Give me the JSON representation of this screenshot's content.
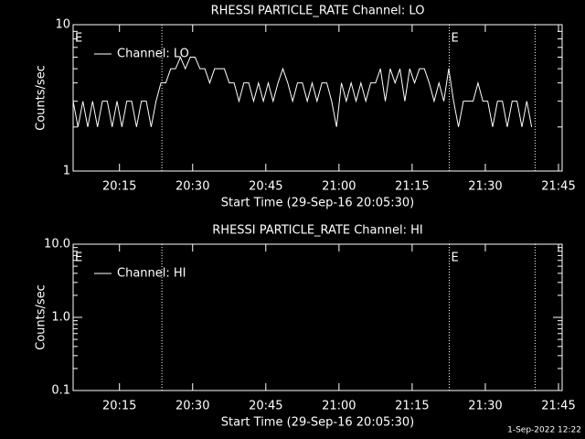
{
  "chart_data": [
    {
      "type": "line",
      "title": "RHESSI PARTICLE_RATE Channel: LO",
      "x_label": "Start Time (29-Sep-16 20:05:30)",
      "y_label": "Counts/sec",
      "xlim": [
        0,
        100.25
      ],
      "xticks": [
        {
          "value": 9.5,
          "label": "20:15"
        },
        {
          "value": 24.5,
          "label": "20:30"
        },
        {
          "value": 39.5,
          "label": "20:45"
        },
        {
          "value": 54.5,
          "label": "21:00"
        },
        {
          "value": 69.5,
          "label": "21:15"
        },
        {
          "value": 84.5,
          "label": "21:30"
        },
        {
          "value": 99.5,
          "label": "21:45"
        }
      ],
      "ylim": [
        1,
        10
      ],
      "yticks": [
        1,
        10
      ],
      "log_y": true,
      "vlines": [
        18.2,
        77.1,
        94.7
      ],
      "annotations": [
        {
          "text": "E",
          "x": 0
        },
        {
          "text": "E",
          "x": 77.1
        }
      ],
      "series": [
        {
          "name": "Channel: LO",
          "color": "#ffffff",
          "x": [
            0,
            1,
            2,
            3,
            4,
            5,
            6,
            7,
            8,
            9,
            10,
            11,
            12,
            13,
            14,
            15,
            16,
            17,
            18,
            19,
            20,
            21,
            22,
            23,
            24,
            25,
            26,
            27,
            28,
            29,
            30,
            31,
            32,
            33,
            34,
            35,
            36,
            37,
            38,
            39,
            40,
            41,
            42,
            43,
            44,
            45,
            46,
            47,
            48,
            49,
            50,
            51,
            52,
            53,
            54,
            55,
            56,
            57,
            58,
            59,
            60,
            61,
            62,
            63,
            64,
            65,
            66,
            67,
            68,
            69,
            70,
            71,
            72,
            73,
            74,
            75,
            76,
            77,
            78,
            79,
            80,
            81,
            82,
            83,
            84,
            85,
            86,
            87,
            88,
            89,
            90,
            91,
            92,
            93,
            94
          ],
          "values": [
            3,
            2,
            3,
            2,
            3,
            2,
            3,
            3,
            2,
            3,
            2,
            3,
            3,
            2,
            3,
            3,
            2,
            3,
            4,
            4,
            5,
            5,
            6,
            5,
            6,
            6,
            5,
            5,
            4,
            5,
            5,
            5,
            4,
            4,
            3,
            4,
            4,
            3,
            4,
            3,
            4,
            3,
            4,
            5,
            4,
            3,
            4,
            4,
            3,
            4,
            3,
            4,
            4,
            3,
            2,
            4,
            3,
            4,
            3,
            4,
            3,
            4,
            4,
            5,
            3,
            5,
            4,
            5,
            3,
            5,
            4,
            5,
            5,
            4,
            3,
            4,
            3,
            5,
            3,
            2,
            3,
            3,
            3,
            4,
            3,
            3,
            2,
            3,
            3,
            2,
            3,
            3,
            2,
            3,
            2
          ]
        }
      ]
    },
    {
      "type": "line",
      "title": "RHESSI PARTICLE_RATE Channel: HI",
      "x_label": "Start Time (29-Sep-16 20:05:30)",
      "y_label": "Counts/sec",
      "xlim": [
        0,
        100.25
      ],
      "xticks": [
        {
          "value": 9.5,
          "label": "20:15"
        },
        {
          "value": 24.5,
          "label": "20:30"
        },
        {
          "value": 39.5,
          "label": "20:45"
        },
        {
          "value": 54.5,
          "label": "21:00"
        },
        {
          "value": 69.5,
          "label": "21:15"
        },
        {
          "value": 84.5,
          "label": "21:30"
        },
        {
          "value": 99.5,
          "label": "21:45"
        }
      ],
      "ylim": [
        0.1,
        10
      ],
      "yticks": [
        {
          "value": 0.1,
          "label": "0.1"
        },
        {
          "value": 1,
          "label": "1.0"
        },
        {
          "value": 10,
          "label": "10.0"
        }
      ],
      "log_y": true,
      "vlines": [
        18.2,
        77.1,
        94.7
      ],
      "annotations": [
        {
          "text": "E",
          "x": 0
        },
        {
          "text": "E",
          "x": 77.1
        }
      ],
      "series": [
        {
          "name": "Channel: HI",
          "color": "#ffffff",
          "x": [],
          "values": []
        }
      ]
    }
  ],
  "footer": "1-Sep-2022 12:22"
}
